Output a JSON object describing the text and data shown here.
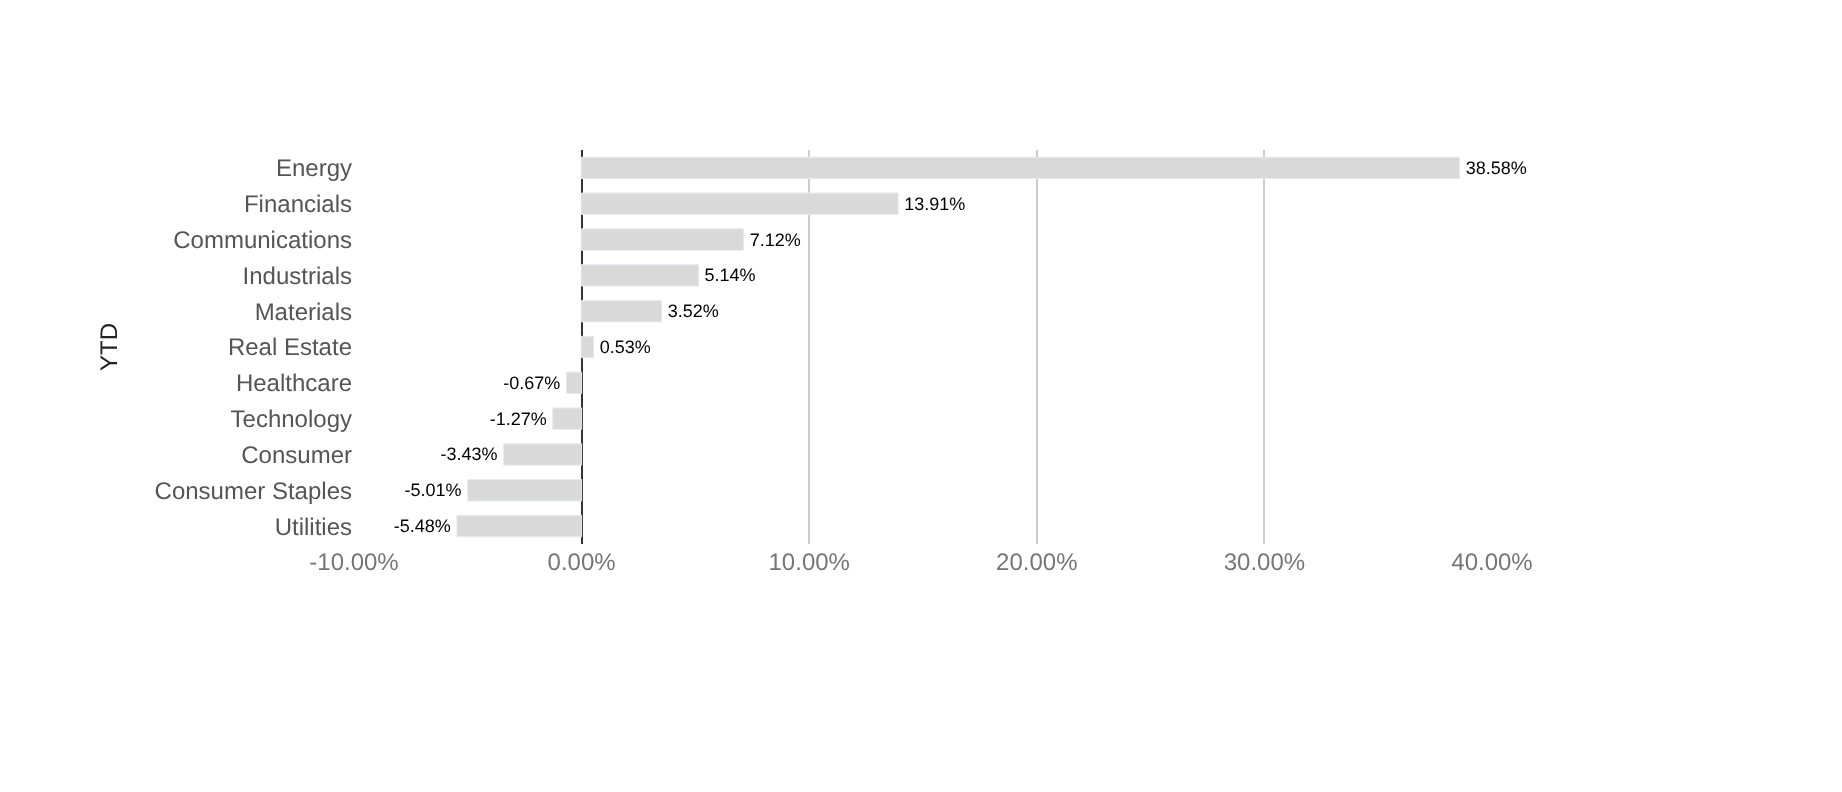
{
  "chart_data": {
    "type": "bar",
    "orientation": "horizontal",
    "ylabel": "YTD",
    "categories": [
      "Energy",
      "Financials",
      "Communications",
      "Industrials",
      "Materials",
      "Real Estate",
      "Healthcare",
      "Technology",
      "Consumer",
      "Consumer Staples",
      "Utilities"
    ],
    "values": [
      38.58,
      13.91,
      7.12,
      5.14,
      3.52,
      0.53,
      -0.67,
      -1.27,
      -3.43,
      -5.01,
      -5.48
    ],
    "value_labels": [
      "38.58%",
      "13.91%",
      "7.12%",
      "5.14%",
      "3.52%",
      "0.53%",
      "-0.67%",
      "-1.27%",
      "-3.43%",
      "-5.01%",
      "-5.48%"
    ],
    "color": "#d9d9d9",
    "xlim": [
      -10,
      40
    ],
    "xticks": [
      {
        "value": -10,
        "label": "-10.00%"
      },
      {
        "value": 0,
        "label": "0.00%"
      },
      {
        "value": 10,
        "label": "10.00%"
      },
      {
        "value": 20,
        "label": "20.00%"
      },
      {
        "value": 30,
        "label": "30.00%"
      },
      {
        "value": 40,
        "label": "40.00%"
      }
    ],
    "grid": "x",
    "legend": false
  }
}
